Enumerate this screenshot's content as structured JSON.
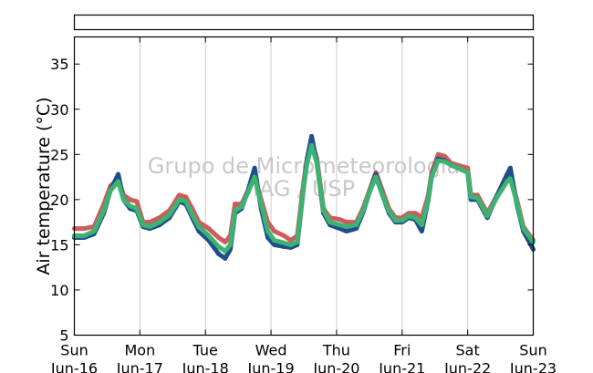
{
  "chart_data": {
    "type": "scatter",
    "title": "",
    "xlabel": "",
    "ylabel": "Air temperature (°C)",
    "ylim": [
      5,
      38
    ],
    "yticks": [
      5,
      10,
      15,
      20,
      25,
      30,
      35
    ],
    "xlim": [
      0,
      7
    ],
    "xticks": [
      {
        "x": 0,
        "day": "Sun",
        "date": "Jun-16"
      },
      {
        "x": 1,
        "day": "Mon",
        "date": "Jun-17"
      },
      {
        "x": 2,
        "day": "Tue",
        "date": "Jun-18"
      },
      {
        "x": 3,
        "day": "Wed",
        "date": "Jun-19"
      },
      {
        "x": 4,
        "day": "Thu",
        "date": "Jun-20"
      },
      {
        "x": 5,
        "day": "Fri",
        "date": "Jun-21"
      },
      {
        "x": 6,
        "day": "Sat",
        "date": "Jun-22"
      },
      {
        "x": 7,
        "day": "Sun",
        "date": "Jun-23"
      }
    ],
    "grid": "vertical",
    "legend": "top (empty box)",
    "watermark": [
      "Grupo de Micrometeorologia",
      "IAG / USP"
    ],
    "series": [
      {
        "color": "#cd5c5c",
        "points": [
          [
            0,
            16.8
          ],
          [
            0.15,
            16.8
          ],
          [
            0.3,
            17.0
          ],
          [
            0.45,
            19.5
          ],
          [
            0.55,
            21.5
          ],
          [
            0.67,
            22.3
          ],
          [
            0.75,
            20.5
          ],
          [
            0.85,
            20.0
          ],
          [
            0.95,
            19.8
          ],
          [
            1.05,
            17.5
          ],
          [
            1.15,
            17.5
          ],
          [
            1.3,
            18.0
          ],
          [
            1.45,
            18.8
          ],
          [
            1.6,
            20.5
          ],
          [
            1.7,
            20.3
          ],
          [
            1.8,
            19.0
          ],
          [
            1.9,
            17.5
          ],
          [
            2.05,
            16.8
          ],
          [
            2.2,
            15.8
          ],
          [
            2.3,
            15.3
          ],
          [
            2.38,
            16.0
          ],
          [
            2.45,
            19.5
          ],
          [
            2.55,
            19.5
          ],
          [
            2.65,
            21.0
          ],
          [
            2.75,
            22.5
          ],
          [
            2.85,
            20.0
          ],
          [
            2.95,
            17.5
          ],
          [
            3.05,
            16.5
          ],
          [
            3.2,
            16.0
          ],
          [
            3.3,
            15.5
          ],
          [
            3.4,
            16.0
          ],
          [
            3.5,
            22.0
          ],
          [
            3.55,
            24.5
          ],
          [
            3.62,
            26.5
          ],
          [
            3.7,
            24.5
          ],
          [
            3.8,
            19.0
          ],
          [
            3.9,
            18.0
          ],
          [
            4.05,
            17.8
          ],
          [
            4.15,
            17.5
          ],
          [
            4.3,
            17.5
          ],
          [
            4.4,
            19.0
          ],
          [
            4.5,
            21.0
          ],
          [
            4.6,
            23.0
          ],
          [
            4.7,
            21.0
          ],
          [
            4.8,
            19.0
          ],
          [
            4.9,
            18.0
          ],
          [
            5.0,
            18.0
          ],
          [
            5.1,
            18.5
          ],
          [
            5.2,
            18.5
          ],
          [
            5.3,
            18.0
          ],
          [
            5.4,
            20.5
          ],
          [
            5.45,
            23.0
          ],
          [
            5.55,
            25.0
          ],
          [
            5.65,
            24.8
          ],
          [
            5.75,
            24.0
          ],
          [
            5.85,
            23.8
          ],
          [
            6.0,
            23.5
          ],
          [
            6.05,
            20.5
          ],
          [
            6.15,
            20.5
          ],
          [
            6.3,
            18.5
          ],
          [
            6.45,
            20.5
          ],
          [
            6.6,
            22.0
          ],
          [
            6.65,
            22.5
          ],
          [
            6.75,
            20.0
          ],
          [
            6.85,
            17.0
          ],
          [
            7.0,
            15.5
          ]
        ]
      },
      {
        "color": "#1f4e8c",
        "points": [
          [
            0,
            15.8
          ],
          [
            0.15,
            15.8
          ],
          [
            0.3,
            16.2
          ],
          [
            0.45,
            18.5
          ],
          [
            0.55,
            21.0
          ],
          [
            0.67,
            22.8
          ],
          [
            0.75,
            20.0
          ],
          [
            0.85,
            19.0
          ],
          [
            0.95,
            18.8
          ],
          [
            1.05,
            17.0
          ],
          [
            1.15,
            16.8
          ],
          [
            1.3,
            17.2
          ],
          [
            1.45,
            18.0
          ],
          [
            1.6,
            19.8
          ],
          [
            1.7,
            19.5
          ],
          [
            1.8,
            18.0
          ],
          [
            1.9,
            16.5
          ],
          [
            2.05,
            15.5
          ],
          [
            2.2,
            14.0
          ],
          [
            2.3,
            13.5
          ],
          [
            2.38,
            14.5
          ],
          [
            2.45,
            18.5
          ],
          [
            2.55,
            19.0
          ],
          [
            2.65,
            21.0
          ],
          [
            2.75,
            23.5
          ],
          [
            2.85,
            19.0
          ],
          [
            2.95,
            15.8
          ],
          [
            3.05,
            15.0
          ],
          [
            3.2,
            14.8
          ],
          [
            3.3,
            14.7
          ],
          [
            3.4,
            15.0
          ],
          [
            3.5,
            21.5
          ],
          [
            3.55,
            24.5
          ],
          [
            3.62,
            27.0
          ],
          [
            3.7,
            24.0
          ],
          [
            3.8,
            18.5
          ],
          [
            3.9,
            17.2
          ],
          [
            4.05,
            16.8
          ],
          [
            4.15,
            16.5
          ],
          [
            4.3,
            16.8
          ],
          [
            4.4,
            18.5
          ],
          [
            4.5,
            20.8
          ],
          [
            4.6,
            22.8
          ],
          [
            4.7,
            20.5
          ],
          [
            4.8,
            18.5
          ],
          [
            4.9,
            17.5
          ],
          [
            5.0,
            17.5
          ],
          [
            5.1,
            18.0
          ],
          [
            5.2,
            17.8
          ],
          [
            5.3,
            16.5
          ],
          [
            5.4,
            20.0
          ],
          [
            5.45,
            22.5
          ],
          [
            5.55,
            24.5
          ],
          [
            5.65,
            24.3
          ],
          [
            5.75,
            23.8
          ],
          [
            5.85,
            23.5
          ],
          [
            6.0,
            23.0
          ],
          [
            6.05,
            20.0
          ],
          [
            6.15,
            20.0
          ],
          [
            6.3,
            18.0
          ],
          [
            6.45,
            20.5
          ],
          [
            6.6,
            22.8
          ],
          [
            6.65,
            23.5
          ],
          [
            6.75,
            19.5
          ],
          [
            6.85,
            16.5
          ],
          [
            7.0,
            14.5
          ]
        ]
      },
      {
        "color": "#3cb371",
        "points": [
          [
            0,
            16.0
          ],
          [
            0.15,
            16.0
          ],
          [
            0.3,
            16.5
          ],
          [
            0.45,
            18.8
          ],
          [
            0.55,
            21.0
          ],
          [
            0.67,
            22.0
          ],
          [
            0.75,
            20.0
          ],
          [
            0.85,
            19.3
          ],
          [
            0.95,
            19.0
          ],
          [
            1.05,
            17.2
          ],
          [
            1.15,
            17.0
          ],
          [
            1.3,
            17.5
          ],
          [
            1.45,
            18.3
          ],
          [
            1.6,
            20.0
          ],
          [
            1.7,
            19.8
          ],
          [
            1.8,
            18.3
          ],
          [
            1.9,
            17.0
          ],
          [
            2.05,
            16.0
          ],
          [
            2.2,
            14.8
          ],
          [
            2.3,
            14.3
          ],
          [
            2.38,
            15.0
          ],
          [
            2.45,
            18.8
          ],
          [
            2.55,
            19.2
          ],
          [
            2.65,
            20.8
          ],
          [
            2.75,
            22.5
          ],
          [
            2.85,
            19.5
          ],
          [
            2.95,
            16.5
          ],
          [
            3.05,
            15.5
          ],
          [
            3.2,
            15.2
          ],
          [
            3.3,
            15.0
          ],
          [
            3.4,
            15.3
          ],
          [
            3.5,
            21.5
          ],
          [
            3.55,
            24.0
          ],
          [
            3.62,
            26.0
          ],
          [
            3.7,
            24.0
          ],
          [
            3.8,
            18.8
          ],
          [
            3.9,
            17.5
          ],
          [
            4.05,
            17.2
          ],
          [
            4.15,
            17.0
          ],
          [
            4.3,
            17.2
          ],
          [
            4.4,
            18.7
          ],
          [
            4.5,
            20.8
          ],
          [
            4.6,
            22.5
          ],
          [
            4.7,
            20.5
          ],
          [
            4.8,
            18.7
          ],
          [
            4.9,
            17.7
          ],
          [
            5.0,
            17.7
          ],
          [
            5.1,
            18.2
          ],
          [
            5.2,
            18.0
          ],
          [
            5.3,
            17.2
          ],
          [
            5.4,
            20.0
          ],
          [
            5.45,
            22.5
          ],
          [
            5.55,
            24.3
          ],
          [
            5.65,
            24.2
          ],
          [
            5.75,
            23.8
          ],
          [
            5.85,
            23.5
          ],
          [
            6.0,
            23.0
          ],
          [
            6.05,
            20.3
          ],
          [
            6.15,
            20.2
          ],
          [
            6.3,
            18.2
          ],
          [
            6.45,
            20.3
          ],
          [
            6.6,
            22.0
          ],
          [
            6.65,
            22.3
          ],
          [
            6.75,
            19.7
          ],
          [
            6.85,
            16.8
          ],
          [
            7.0,
            15.3
          ]
        ]
      }
    ]
  }
}
